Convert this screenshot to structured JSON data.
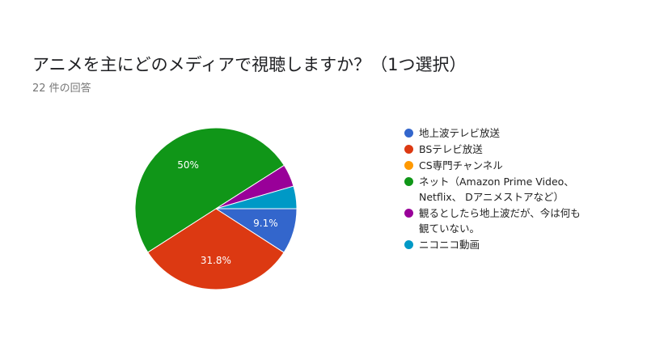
{
  "title": "アニメを主にどのメディアで視聴しますか？（1つ選択）",
  "response_count": "22 件の回答",
  "chart_data": {
    "type": "pie",
    "title": "アニメを主にどのメディアで視聴しますか？（1つ選択）",
    "series": [
      {
        "name": "地上波テレビ放送",
        "value": 9.1,
        "label": "9.1%",
        "color": "#3366cc"
      },
      {
        "name": "BSテレビ放送",
        "value": 31.8,
        "label": "31.8%",
        "color": "#dc3912"
      },
      {
        "name": "CS専門チャンネル",
        "value": 0,
        "label": "",
        "color": "#ff9900"
      },
      {
        "name": "ネット（Amazon Prime Video、\nNetflix、 Dアニメストアなど）",
        "value": 50,
        "label": "50%",
        "color": "#109618"
      },
      {
        "name": "観るとしたら地上波だが、今は何も\n観ていない。",
        "value": 4.5,
        "label": "",
        "color": "#990099"
      },
      {
        "name": "ニコニコ動画",
        "value": 4.5,
        "label": "",
        "color": "#0099c6"
      }
    ],
    "legend_position": "right"
  }
}
